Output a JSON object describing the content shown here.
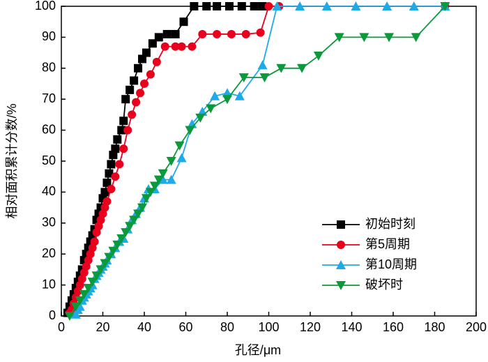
{
  "chart_data": {
    "type": "line",
    "xlabel": "孔径/μm",
    "ylabel": "相对面积累计分数/%",
    "xlim": [
      0,
      200
    ],
    "xticks": [
      0,
      20,
      40,
      60,
      80,
      100,
      120,
      140,
      160,
      180,
      200
    ],
    "ylim": [
      0,
      100
    ],
    "yticks": [
      0,
      10,
      20,
      30,
      40,
      50,
      60,
      70,
      80,
      90,
      100
    ],
    "legend": "lower right",
    "series": [
      {
        "name": "初始时刻",
        "color": "#000000",
        "marker": "square",
        "x": [
          3,
          4,
          5,
          6,
          7,
          8,
          9,
          10,
          11,
          12,
          13,
          14,
          15,
          16,
          17,
          18,
          19,
          20,
          21,
          22,
          23,
          24,
          25,
          26,
          27,
          29,
          30,
          31,
          33,
          35,
          37,
          39,
          41,
          44,
          47,
          51,
          55,
          59,
          64,
          70,
          75,
          81,
          87,
          93,
          97
        ],
        "values": [
          1,
          3,
          5,
          7,
          9,
          11,
          13,
          15,
          18,
          20,
          22,
          24,
          26,
          28,
          31,
          33,
          35,
          38,
          40,
          43,
          46,
          49,
          52,
          54,
          57,
          60,
          63,
          70,
          73,
          76,
          80,
          83,
          85,
          88,
          90,
          91,
          91,
          95,
          100,
          100,
          100,
          100,
          100,
          100,
          100
        ]
      },
      {
        "name": "第5周期",
        "color": "#e8001c",
        "marker": "circle",
        "x": [
          4,
          5,
          6,
          7,
          8,
          9,
          10,
          11,
          12,
          13,
          14,
          15,
          16,
          17,
          18,
          19,
          20,
          21,
          22,
          24,
          26,
          28,
          30,
          32,
          34,
          36,
          38,
          40,
          43,
          46,
          50,
          55,
          58,
          63,
          68,
          75,
          82,
          89,
          96,
          100,
          105,
          185
        ],
        "values": [
          1,
          2,
          4,
          6,
          8,
          10,
          12,
          14,
          16,
          18,
          20,
          22,
          24,
          27,
          29,
          31,
          33,
          35,
          37,
          41,
          45,
          49,
          54,
          60,
          65,
          69,
          72,
          75,
          78,
          82,
          87,
          87,
          87,
          87,
          91,
          91,
          91,
          91,
          91.5,
          100,
          100,
          100
        ]
      },
      {
        "name": "第10周期",
        "color": "#1eaae6",
        "marker": "triangle-up",
        "x": [
          7,
          8,
          9,
          10,
          11,
          12,
          13,
          14,
          15,
          16,
          17,
          18,
          19,
          20,
          21,
          22,
          24,
          26,
          28,
          30,
          32,
          34,
          36,
          38,
          40,
          42,
          45,
          49,
          53,
          58,
          63,
          68,
          74,
          80,
          86,
          97,
          104,
          115,
          128,
          142,
          157,
          170,
          185
        ],
        "values": [
          0.5,
          2,
          3,
          5,
          6,
          7,
          8,
          9,
          10,
          12,
          13,
          14,
          15,
          16,
          17,
          18,
          20,
          22,
          24,
          25,
          28,
          31,
          33,
          35,
          38,
          41,
          41,
          44,
          44,
          51,
          62,
          66,
          71,
          72,
          71,
          81,
          100,
          100,
          100,
          100,
          100,
          100,
          100
        ]
      },
      {
        "name": "破坏时",
        "color": "#0a9a3c",
        "marker": "triangle-down",
        "x": [
          4,
          7,
          9,
          11,
          13,
          15,
          17,
          19,
          21,
          23,
          25,
          27,
          29,
          31,
          33,
          35,
          37,
          39,
          41,
          43,
          45,
          47,
          49,
          53,
          57,
          62,
          67,
          72,
          80,
          88,
          98,
          106,
          116,
          124,
          134,
          146,
          158,
          171,
          185
        ],
        "values": [
          0,
          3,
          5,
          7,
          9,
          11,
          13,
          15,
          17,
          19,
          21,
          23,
          25,
          27,
          29,
          31,
          33,
          35,
          38,
          40,
          42,
          44,
          46,
          50,
          55,
          60,
          64,
          67,
          70,
          77,
          77,
          80,
          80,
          84,
          90,
          90,
          90,
          90,
          100
        ]
      }
    ]
  }
}
